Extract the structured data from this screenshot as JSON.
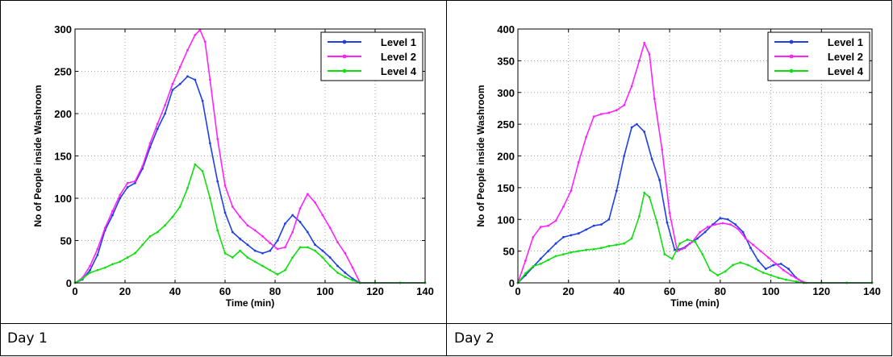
{
  "captions": [
    "Day 1",
    "Day 2"
  ],
  "chart_data": [
    {
      "type": "line",
      "title": "",
      "xlabel": "Time (min)",
      "ylabel": "No of People inside Washroom",
      "xlim": [
        0,
        140
      ],
      "ylim": [
        0,
        300
      ],
      "xticks": [
        0,
        20,
        40,
        60,
        80,
        100,
        120,
        140
      ],
      "yticks": [
        0,
        50,
        100,
        150,
        200,
        250,
        300
      ],
      "grid": true,
      "legend_position": "top-right",
      "series": [
        {
          "name": "Level 1",
          "color": "#1f3fe6",
          "x": [
            0,
            3,
            6,
            9,
            12,
            15,
            18,
            21,
            24,
            27,
            30,
            33,
            36,
            39,
            42,
            45,
            48,
            51,
            54,
            57,
            60,
            63,
            66,
            69,
            72,
            75,
            78,
            81,
            84,
            87,
            90,
            93,
            96,
            99,
            102,
            105,
            108,
            111,
            114,
            120,
            130,
            140
          ],
          "y": [
            0,
            4,
            15,
            33,
            62,
            80,
            100,
            113,
            118,
            135,
            160,
            182,
            200,
            228,
            235,
            244,
            240,
            215,
            165,
            120,
            83,
            60,
            52,
            45,
            38,
            35,
            38,
            50,
            70,
            80,
            72,
            60,
            45,
            38,
            30,
            20,
            12,
            5,
            0,
            0,
            0,
            0
          ]
        },
        {
          "name": "Level 2",
          "color": "#ff22ff",
          "x": [
            0,
            3,
            6,
            9,
            12,
            15,
            18,
            21,
            24,
            27,
            30,
            33,
            36,
            39,
            42,
            45,
            48,
            50,
            52,
            54,
            57,
            60,
            63,
            66,
            69,
            72,
            75,
            78,
            81,
            84,
            87,
            90,
            93,
            96,
            99,
            102,
            105,
            108,
            111,
            114,
            120,
            130,
            140
          ],
          "y": [
            0,
            6,
            20,
            40,
            65,
            85,
            104,
            118,
            120,
            138,
            165,
            188,
            210,
            235,
            255,
            275,
            293,
            299,
            285,
            240,
            170,
            115,
            90,
            78,
            68,
            62,
            55,
            47,
            40,
            42,
            60,
            88,
            105,
            95,
            80,
            65,
            48,
            35,
            18,
            0,
            0,
            0,
            0
          ]
        },
        {
          "name": "Level 4",
          "color": "#10e010",
          "x": [
            0,
            3,
            6,
            9,
            12,
            15,
            18,
            21,
            24,
            27,
            30,
            33,
            36,
            39,
            42,
            45,
            48,
            51,
            54,
            57,
            60,
            63,
            66,
            69,
            72,
            75,
            78,
            81,
            84,
            87,
            90,
            93,
            96,
            99,
            102,
            105,
            108,
            111,
            114,
            120,
            130,
            140
          ],
          "y": [
            0,
            5,
            12,
            15,
            18,
            22,
            25,
            30,
            35,
            45,
            55,
            60,
            68,
            78,
            90,
            112,
            140,
            132,
            100,
            62,
            35,
            30,
            38,
            30,
            25,
            20,
            15,
            10,
            15,
            30,
            42,
            42,
            38,
            30,
            20,
            12,
            7,
            3,
            0,
            0,
            0,
            0
          ]
        }
      ]
    },
    {
      "type": "line",
      "title": "",
      "xlabel": "Time (min)",
      "ylabel": "No of People inside Washroom",
      "xlim": [
        0,
        140
      ],
      "ylim": [
        0,
        400
      ],
      "xticks": [
        0,
        20,
        40,
        60,
        80,
        100,
        120,
        140
      ],
      "yticks": [
        0,
        50,
        100,
        150,
        200,
        250,
        300,
        350,
        400
      ],
      "grid": true,
      "legend_position": "top-right",
      "series": [
        {
          "name": "Level 1",
          "color": "#1f3fe6",
          "x": [
            0,
            3,
            6,
            9,
            12,
            15,
            18,
            21,
            24,
            27,
            30,
            33,
            36,
            39,
            42,
            45,
            47,
            50,
            53,
            56,
            59,
            62,
            65,
            68,
            71,
            74,
            77,
            80,
            83,
            86,
            89,
            92,
            95,
            98,
            101,
            104,
            107,
            110,
            113,
            120,
            130,
            140
          ],
          "y": [
            0,
            12,
            25,
            38,
            50,
            62,
            72,
            75,
            78,
            84,
            90,
            92,
            100,
            145,
            200,
            245,
            250,
            238,
            195,
            162,
            95,
            52,
            54,
            62,
            70,
            80,
            92,
            102,
            100,
            92,
            80,
            55,
            35,
            22,
            28,
            30,
            22,
            8,
            0,
            0,
            0,
            0
          ]
        },
        {
          "name": "Level 2",
          "color": "#ff22ff",
          "x": [
            0,
            3,
            6,
            9,
            12,
            15,
            18,
            21,
            24,
            27,
            30,
            33,
            36,
            39,
            42,
            45,
            48,
            50,
            52,
            54,
            57,
            60,
            63,
            66,
            69,
            72,
            75,
            78,
            81,
            84,
            87,
            90,
            93,
            96,
            99,
            102,
            105,
            108,
            111,
            114,
            120,
            130,
            140
          ],
          "y": [
            0,
            35,
            72,
            88,
            90,
            98,
            120,
            145,
            190,
            230,
            262,
            266,
            268,
            272,
            280,
            310,
            350,
            378,
            360,
            290,
            210,
            110,
            50,
            55,
            65,
            80,
            88,
            92,
            94,
            92,
            85,
            70,
            60,
            50,
            40,
            30,
            20,
            12,
            5,
            0,
            0,
            0,
            0
          ]
        },
        {
          "name": "Level 4",
          "color": "#10e010",
          "x": [
            0,
            3,
            6,
            9,
            12,
            15,
            18,
            21,
            24,
            27,
            30,
            33,
            36,
            39,
            42,
            45,
            48,
            50,
            52,
            55,
            58,
            61,
            64,
            67,
            70,
            73,
            76,
            79,
            82,
            85,
            88,
            91,
            94,
            97,
            100,
            103,
            106,
            110,
            113,
            120,
            130,
            140
          ],
          "y": [
            0,
            15,
            26,
            30,
            36,
            42,
            45,
            48,
            50,
            52,
            53,
            55,
            58,
            60,
            62,
            70,
            105,
            142,
            135,
            95,
            45,
            38,
            62,
            68,
            65,
            45,
            20,
            12,
            18,
            28,
            32,
            28,
            22,
            16,
            12,
            8,
            5,
            2,
            0,
            0,
            0,
            0
          ]
        }
      ]
    }
  ]
}
